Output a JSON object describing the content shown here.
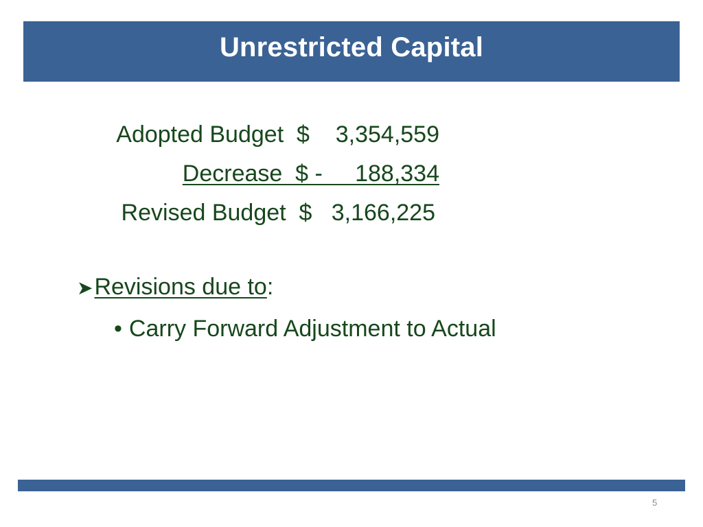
{
  "slide": {
    "title": "Unrestricted Capital",
    "page_number": "5"
  },
  "budget": {
    "adopted": "Adopted Budget  $    3,354,559",
    "decrease": "Decrease  $ -     188,334",
    "revised": "Revised Budget  $   3,166,225"
  },
  "revisions": {
    "bullet_icon": "arrow-bullet-icon",
    "heading": "Revisions due to",
    "colon": ":",
    "items": [
      "Carry Forward Adjustment to Actual"
    ]
  },
  "colors": {
    "header_bar": "#3a6295",
    "text": "#17471c",
    "footer_bar": "#3a6295"
  }
}
